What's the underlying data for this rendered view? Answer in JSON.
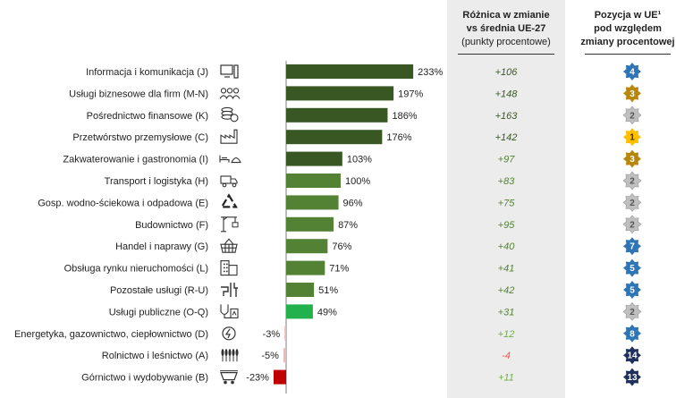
{
  "header": {
    "diff_line1": "Różnica w zmianie",
    "diff_line2": "vs średnia UE-27",
    "diff_line3": "(punkty procentowe)",
    "rank_line1": "Pozycja w UE¹",
    "rank_line2": "pod względem",
    "rank_line3": "zmiany procentowej"
  },
  "colors": {
    "dark_green": "#385723",
    "mid_green": "#548235",
    "light_green": "#70ad47",
    "bright_green": "#22b14c",
    "pink": "#f4b6b6",
    "red": "#c00000",
    "blue_star": "#2e75b6",
    "navy_star": "#1f2f5e",
    "gold_star": "#b8860b",
    "yellow_star": "#ffc000",
    "grey_star": "#bfbfbf"
  },
  "chart_data": {
    "type": "bar",
    "orientation": "horizontal",
    "categories": [
      "Informacja i komunikacja (J)",
      "Usługi biznesowe dla firm (M-N)",
      "Pośrednictwo finansowe (K)",
      "Przetwórstwo przemysłowe (C)",
      "Zakwaterowanie i gastronomia (I)",
      "Transport i logistyka (H)",
      "Gosp. wodno-ściekowa i odpadowa (E)",
      "Budownictwo (F)",
      "Handel i naprawy (G)",
      "Obsługa rynku nieruchomości (L)",
      "Pozostałe usługi (R-U)",
      "Usługi publiczne (O-Q)",
      "Energetyka, gazownictwo, ciepłownictwo (D)",
      "Rolnictwo i leśnictwo (A)",
      "Górnictwo i wydobywanie (B)"
    ],
    "values": [
      233,
      197,
      186,
      176,
      103,
      100,
      96,
      87,
      76,
      71,
      51,
      49,
      -3,
      -5,
      -23
    ],
    "value_labels": [
      "233%",
      "197%",
      "186%",
      "176%",
      "103%",
      "100%",
      "96%",
      "87%",
      "76%",
      "71%",
      "51%",
      "49%",
      "-3%",
      "-5%",
      "-23%"
    ],
    "bar_colors": [
      "dark",
      "dark",
      "dark",
      "dark",
      "dark",
      "mid",
      "mid",
      "mid",
      "mid",
      "mid",
      "mid",
      "bright",
      "pink",
      "pink",
      "red"
    ],
    "diff_labels": [
      "+106",
      "+148",
      "+163",
      "+142",
      "+97",
      "+83",
      "+75",
      "+95",
      "+40",
      "+41",
      "+42",
      "+31",
      "+12",
      "-4",
      "+11"
    ],
    "diff_colors": [
      "dark",
      "dark",
      "dark",
      "dark",
      "mid",
      "mid",
      "mid",
      "mid",
      "mid",
      "mid",
      "mid",
      "mid",
      "light",
      "red",
      "light"
    ],
    "ranks": [
      "4",
      "3",
      "2",
      "1",
      "3",
      "2",
      "2",
      "2",
      "7",
      "5",
      "5",
      "2",
      "8",
      "14",
      "13"
    ],
    "rank_colors": [
      "blue",
      "gold",
      "grey",
      "yellow",
      "gold",
      "grey",
      "grey",
      "grey",
      "blue",
      "blue",
      "blue",
      "grey",
      "blue",
      "navy",
      "navy"
    ],
    "icons": [
      "computer-icon",
      "people-icon",
      "coins-icon",
      "factory-icon",
      "bed-icon",
      "truck-icon",
      "recycle-icon",
      "crane-icon",
      "basket-icon",
      "building-icon",
      "tools-icon",
      "stethoscope-icon",
      "energy-icon",
      "wheat-icon",
      "mine-cart-icon"
    ],
    "xlim": [
      -30,
      240
    ]
  }
}
